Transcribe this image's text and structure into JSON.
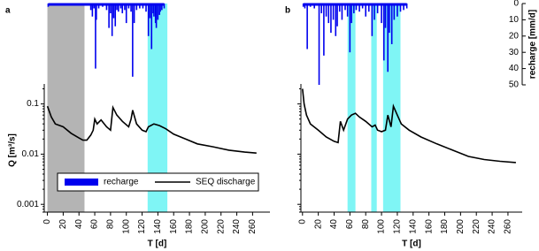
{
  "chart_data": [
    {
      "type": "line",
      "panel": "a",
      "xlabel": "T [d]",
      "ylabel": "Q [m³/s]",
      "ylog": true,
      "xlim": [
        -4,
        282
      ],
      "xticks": [
        0,
        20,
        40,
        60,
        80,
        100,
        120,
        140,
        160,
        180,
        200,
        220,
        240,
        260
      ],
      "ylim": [
        0.0007,
        0.25
      ],
      "yticks": [
        0.001,
        0.01,
        0.1
      ],
      "y2lim": [
        0,
        50
      ],
      "y2_inverted": true,
      "spans": [
        {
          "x0": 0,
          "x1": 47,
          "color": "#b4b4b4"
        },
        {
          "x0": 127,
          "x1": 152,
          "color": "#7ff5f5"
        }
      ],
      "legend": "lower center",
      "series": [
        {
          "name": "recharge",
          "kind": "bar",
          "axis": "y2",
          "color": "#0000ee",
          "x": [
            1,
            3,
            5,
            8,
            12,
            20,
            30,
            40,
            50,
            55,
            57,
            59,
            61,
            62,
            65,
            70,
            75,
            78,
            80,
            82,
            84,
            86,
            88,
            90,
            93,
            95,
            98,
            100,
            103,
            106,
            108,
            110,
            113,
            117,
            121,
            125,
            128,
            130,
            132,
            134,
            135,
            137,
            138,
            140,
            142,
            143,
            145,
            148
          ],
          "values": [
            2,
            1,
            1,
            1,
            1,
            1,
            1,
            1,
            1,
            4,
            8,
            3,
            40,
            10,
            3,
            2,
            4,
            15,
            6,
            20,
            9,
            14,
            4,
            5,
            3,
            6,
            4,
            12,
            3,
            5,
            45,
            12,
            4,
            3,
            3,
            5,
            20,
            9,
            28,
            6,
            8,
            12,
            15,
            10,
            7,
            5,
            4,
            3
          ]
        },
        {
          "name": "SEQ discharge",
          "kind": "line",
          "color": "#000000",
          "x": [
            0,
            5,
            10,
            20,
            30,
            40,
            45,
            50,
            55,
            58,
            60,
            63,
            68,
            75,
            80,
            83,
            88,
            95,
            103,
            106,
            108,
            113,
            120,
            125,
            128,
            135,
            142,
            150,
            160,
            175,
            190,
            210,
            230,
            250,
            265
          ],
          "values": [
            0.09,
            0.055,
            0.04,
            0.035,
            0.026,
            0.021,
            0.019,
            0.019,
            0.024,
            0.03,
            0.05,
            0.04,
            0.048,
            0.035,
            0.03,
            0.085,
            0.06,
            0.045,
            0.035,
            0.05,
            0.075,
            0.04,
            0.03,
            0.028,
            0.035,
            0.04,
            0.037,
            0.032,
            0.025,
            0.02,
            0.016,
            0.014,
            0.012,
            0.011,
            0.0105
          ]
        }
      ]
    },
    {
      "type": "line",
      "panel": "b",
      "xlabel": "T [d]",
      "ylog": true,
      "xlim": [
        -2,
        278
      ],
      "xticks": [
        0,
        20,
        40,
        60,
        80,
        100,
        120,
        140,
        160,
        180,
        200,
        220,
        240,
        260
      ],
      "ylim": [
        0.0007,
        0.25
      ],
      "yticks": [
        0.001,
        0.01,
        0.1
      ],
      "y2label": "recharge [mm/d]",
      "y2lim": [
        0,
        50
      ],
      "y2ticks": [
        0,
        10,
        20,
        30,
        40,
        50
      ],
      "y2_inverted": true,
      "spans": [
        {
          "x0": 57,
          "x1": 67,
          "color": "#7ff5f5"
        },
        {
          "x0": 87,
          "x1": 94,
          "color": "#7ff5f5"
        },
        {
          "x0": 102,
          "x1": 124,
          "color": "#7ff5f5"
        }
      ],
      "series": [
        {
          "kind": "bar",
          "axis": "y2",
          "color": "#0000ee",
          "x": [
            1,
            3,
            6,
            10,
            15,
            21,
            24,
            27,
            30,
            33,
            36,
            39,
            42,
            44,
            47,
            50,
            54,
            57,
            60,
            62,
            65,
            68,
            72,
            76,
            80,
            84,
            88,
            91,
            95,
            100,
            103,
            105,
            108,
            110,
            113,
            116,
            120,
            124,
            128,
            132
          ],
          "values": [
            2,
            3,
            28,
            2,
            3,
            50,
            6,
            32,
            8,
            12,
            18,
            10,
            20,
            14,
            5,
            10,
            4,
            8,
            30,
            12,
            6,
            4,
            5,
            3,
            8,
            5,
            20,
            10,
            6,
            12,
            35,
            15,
            42,
            18,
            25,
            10,
            8,
            5,
            4,
            3
          ]
        },
        {
          "kind": "line",
          "color": "#000000",
          "x": [
            0,
            2,
            5,
            10,
            20,
            30,
            40,
            45,
            48,
            52,
            57,
            62,
            67,
            72,
            80,
            88,
            92,
            95,
            100,
            105,
            108,
            112,
            115,
            120,
            125,
            135,
            150,
            170,
            190,
            210,
            230,
            250,
            270
          ],
          "values": [
            0.2,
            0.1,
            0.06,
            0.04,
            0.03,
            0.022,
            0.018,
            0.017,
            0.045,
            0.03,
            0.05,
            0.06,
            0.065,
            0.055,
            0.045,
            0.035,
            0.038,
            0.03,
            0.028,
            0.03,
            0.06,
            0.035,
            0.09,
            0.06,
            0.04,
            0.03,
            0.022,
            0.016,
            0.012,
            0.009,
            0.0078,
            0.0072,
            0.0068
          ]
        }
      ]
    }
  ]
}
